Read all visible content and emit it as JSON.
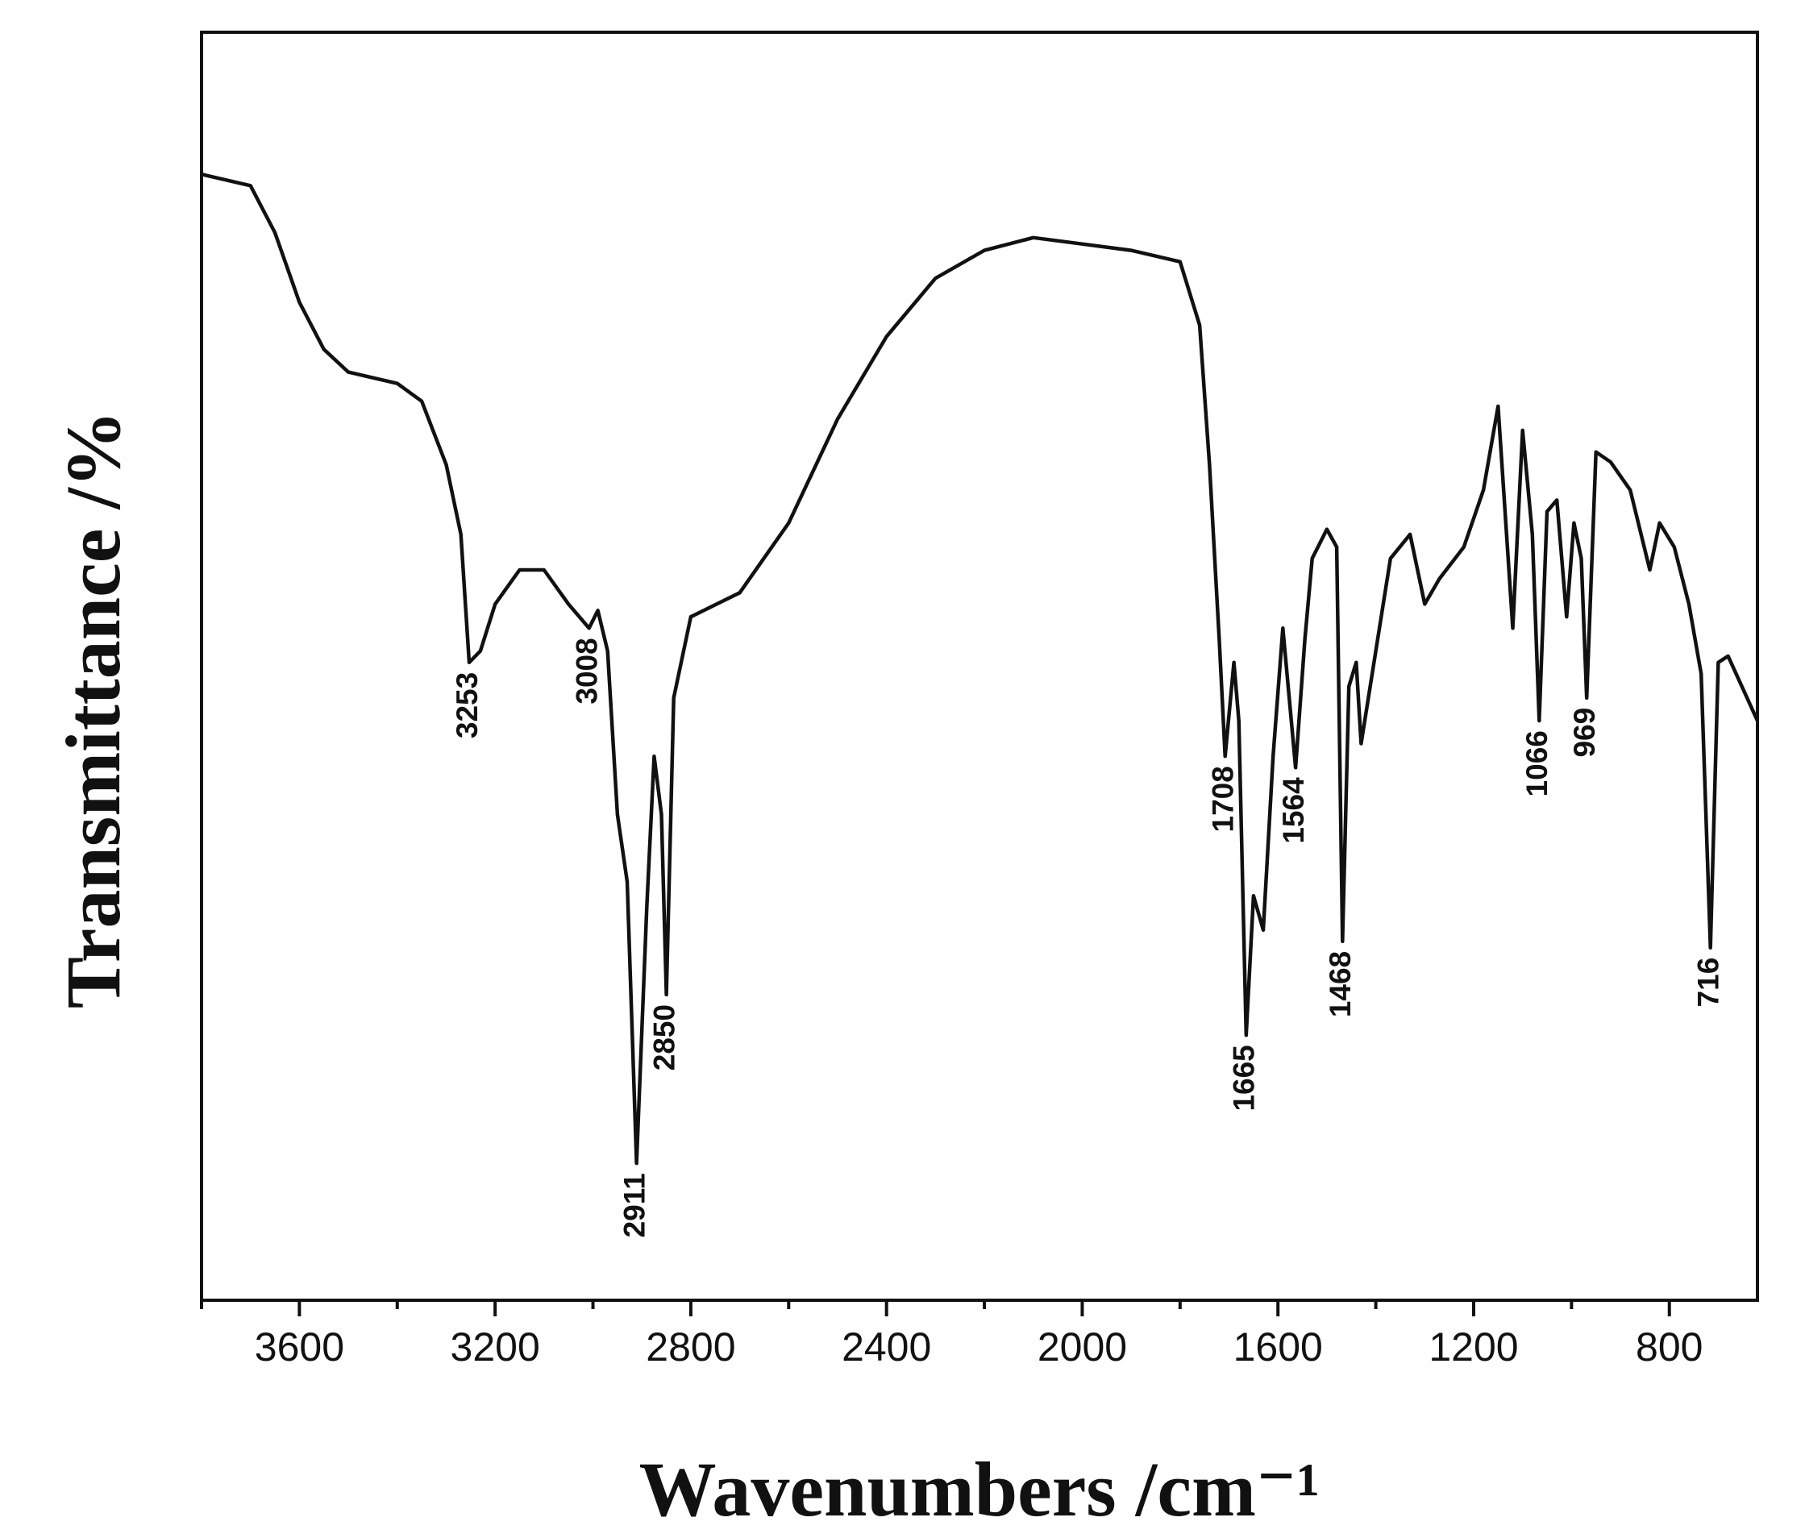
{
  "chart_data": {
    "type": "line",
    "x_label": "Wavenumbers /cm⁻¹",
    "y_label": "Transmittance /%",
    "color": "#111111",
    "x": [
      3800,
      3700,
      3650,
      3600,
      3550,
      3500,
      3400,
      3350,
      3300,
      3270,
      3253,
      3230,
      3200,
      3150,
      3100,
      3050,
      3008,
      2990,
      2970,
      2950,
      2930,
      2911,
      2890,
      2875,
      2860,
      2850,
      2835,
      2800,
      2700,
      2600,
      2500,
      2400,
      2300,
      2200,
      2100,
      2000,
      1900,
      1800,
      1760,
      1740,
      1720,
      1708,
      1690,
      1680,
      1665,
      1650,
      1630,
      1610,
      1590,
      1564,
      1545,
      1530,
      1500,
      1480,
      1468,
      1455,
      1440,
      1430,
      1400,
      1370,
      1330,
      1300,
      1270,
      1220,
      1180,
      1150,
      1120,
      1100,
      1080,
      1066,
      1050,
      1030,
      1010,
      995,
      980,
      969,
      950,
      920,
      880,
      840,
      820,
      790,
      760,
      735,
      716,
      700,
      680,
      620
    ],
    "values": [
      88.8,
      87.9,
      84.2,
      78.7,
      75,
      73.2,
      72.3,
      70.9,
      65.9,
      60.4,
      50.3,
      51.2,
      54.9,
      57.6,
      57.6,
      54.9,
      53,
      54.4,
      51.2,
      38.3,
      33,
      10.8,
      31,
      42.9,
      38.3,
      24.1,
      47.5,
      53.9,
      55.8,
      61.3,
      69.5,
      76,
      80.6,
      82.8,
      83.8,
      83.3,
      82.8,
      81.9,
      76.9,
      65.9,
      52.1,
      42.9,
      50.3,
      45.7,
      20.9,
      31.9,
      29.2,
      42.9,
      53,
      42,
      52.1,
      58.5,
      60.8,
      59.4,
      28.3,
      48.4,
      50.3,
      43.9,
      51.2,
      58.5,
      60.4,
      54.9,
      56.9,
      59.4,
      63.9,
      70.5,
      53,
      68.6,
      60.4,
      45.7,
      62.2,
      63.1,
      53.9,
      61.3,
      58.5,
      47.5,
      66.9,
      66.1,
      63.9,
      57.6,
      61.3,
      59.4,
      54.9,
      49.4,
      27.8,
      50.3,
      50.8,
      45.7
    ],
    "xlim": [
      3800,
      620
    ],
    "ylim": [
      0,
      100
    ],
    "xticks": [
      3600,
      3200,
      2800,
      2400,
      2000,
      1600,
      1200,
      800
    ],
    "xminorticks": [
      3800,
      3400,
      3000,
      2600,
      2200,
      1800,
      1400,
      1000
    ],
    "annotations": [
      {
        "label": "3253",
        "x": 3253
      },
      {
        "label": "3008",
        "x": 3008
      },
      {
        "label": "2911",
        "x": 2911
      },
      {
        "label": "2850",
        "x": 2850
      },
      {
        "label": "1708",
        "x": 1708
      },
      {
        "label": "1665",
        "x": 1665
      },
      {
        "label": "1564",
        "x": 1564
      },
      {
        "label": "1468",
        "x": 1468
      },
      {
        "label": "1066",
        "x": 1066
      },
      {
        "label": "969",
        "x": 969
      },
      {
        "label": "716",
        "x": 716
      }
    ]
  }
}
